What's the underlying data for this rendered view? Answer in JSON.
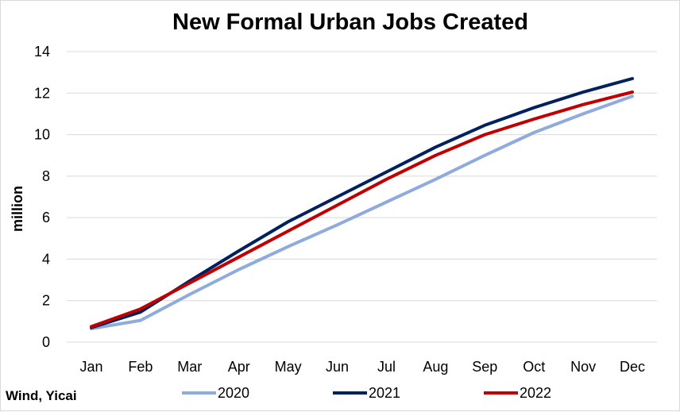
{
  "chart_data": {
    "type": "line",
    "title": "New Formal Urban Jobs Created",
    "xlabel": "",
    "ylabel": "million",
    "ylim": [
      0,
      14
    ],
    "yticks": [
      0,
      2,
      4,
      6,
      8,
      10,
      12,
      14
    ],
    "grid": true,
    "legend_position": "bottom",
    "categories": [
      "Jan",
      "Feb",
      "Mar",
      "Apr",
      "May",
      "Jun",
      "Jul",
      "Aug",
      "Sep",
      "Oct",
      "Nov",
      "Dec"
    ],
    "series": [
      {
        "name": "2020",
        "color": "#8faadc",
        "values": [
          0.65,
          1.05,
          2.3,
          3.5,
          4.6,
          5.65,
          6.75,
          7.85,
          9.0,
          10.1,
          11.0,
          11.85
        ]
      },
      {
        "name": "2021",
        "color": "#002060",
        "values": [
          0.7,
          1.45,
          2.95,
          4.4,
          5.8,
          7.0,
          8.2,
          9.4,
          10.45,
          11.3,
          12.05,
          12.7
        ]
      },
      {
        "name": "2022",
        "color": "#c00000",
        "values": [
          0.75,
          1.6,
          2.85,
          4.1,
          5.35,
          6.6,
          7.85,
          9.0,
          10.0,
          10.75,
          11.45,
          12.05
        ]
      }
    ],
    "source": "Wind, Yicai"
  }
}
